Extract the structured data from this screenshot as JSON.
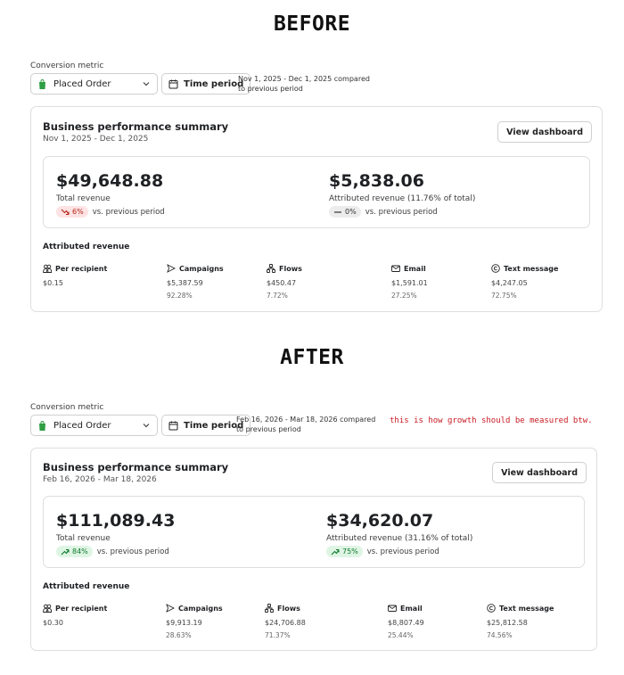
{
  "before": {
    "heading": "BEFORE",
    "conversion_label": "Conversion metric",
    "select_value": "Placed Order",
    "time_period_label": "Time period",
    "range_note": "Nov 1, 2025 - Dec 1, 2025 compared to previous period",
    "card_title": "Business performance summary",
    "card_dates": "Nov 1, 2025 - Dec 1, 2025",
    "view_dashboard": "View dashboard",
    "total_revenue": "$49,648.88",
    "total_revenue_label": "Total revenue",
    "total_change": "6%",
    "total_change_direction": "down",
    "total_change_suffix": "vs. previous period",
    "attributed_revenue": "$5,838.06",
    "attributed_label": "Attributed revenue (11.76% of total)",
    "attributed_change": "0%",
    "attributed_change_direction": "flat",
    "attributed_change_suffix": "vs. previous period",
    "attr_section_title": "Attributed revenue",
    "stats": [
      {
        "icon": "people-icon",
        "label": "Per recipient",
        "value": "$0.15",
        "pct": ""
      },
      {
        "icon": "send-icon",
        "label": "Campaigns",
        "value": "$5,387.59",
        "pct": "92.28%"
      },
      {
        "icon": "flows-icon",
        "label": "Flows",
        "value": "$450.47",
        "pct": "7.72%"
      },
      {
        "icon": "mail-icon",
        "label": "Email",
        "value": "$1,591.01",
        "pct": "27.25%"
      },
      {
        "icon": "sms-icon",
        "label": "Text message",
        "value": "$4,247.05",
        "pct": "72.75%"
      }
    ]
  },
  "after": {
    "heading": "AFTER",
    "conversion_label": "Conversion metric",
    "select_value": "Placed Order",
    "time_period_label": "Time period",
    "range_note": "Feb 16, 2026 - Mar 18, 2026 compared to previous period",
    "annotation": "this is how growth should be measured btw.",
    "card_title": "Business performance summary",
    "card_dates": "Feb 16, 2026 - Mar 18, 2026",
    "view_dashboard": "View dashboard",
    "total_revenue": "$111,089.43",
    "total_revenue_label": "Total revenue",
    "total_change": "84%",
    "total_change_direction": "up",
    "total_change_suffix": "vs. previous period",
    "attributed_revenue": "$34,620.07",
    "attributed_label": "Attributed revenue (31.16% of total)",
    "attributed_change": "75%",
    "attributed_change_direction": "up",
    "attributed_change_suffix": "vs. previous period",
    "attr_section_title": "Attributed revenue",
    "stats": [
      {
        "icon": "people-icon",
        "label": "Per recipient",
        "value": "$0.30",
        "pct": ""
      },
      {
        "icon": "send-icon",
        "label": "Campaigns",
        "value": "$9,913.19",
        "pct": "28.63%"
      },
      {
        "icon": "flows-icon",
        "label": "Flows",
        "value": "$24,706.88",
        "pct": "71.37%"
      },
      {
        "icon": "mail-icon",
        "label": "Email",
        "value": "$8,807.49",
        "pct": "25.44%"
      },
      {
        "icon": "sms-icon",
        "label": "Text message",
        "value": "$25,812.58",
        "pct": "74.56%"
      }
    ]
  },
  "colors": {
    "down_pill_bg": "#fde3e3",
    "down_pill_text": "#b42318",
    "up_pill_bg": "#dff5e4",
    "up_pill_text": "#0c7a2a",
    "annotation": "#c81a22",
    "bag_icon": "#2f9e44"
  }
}
